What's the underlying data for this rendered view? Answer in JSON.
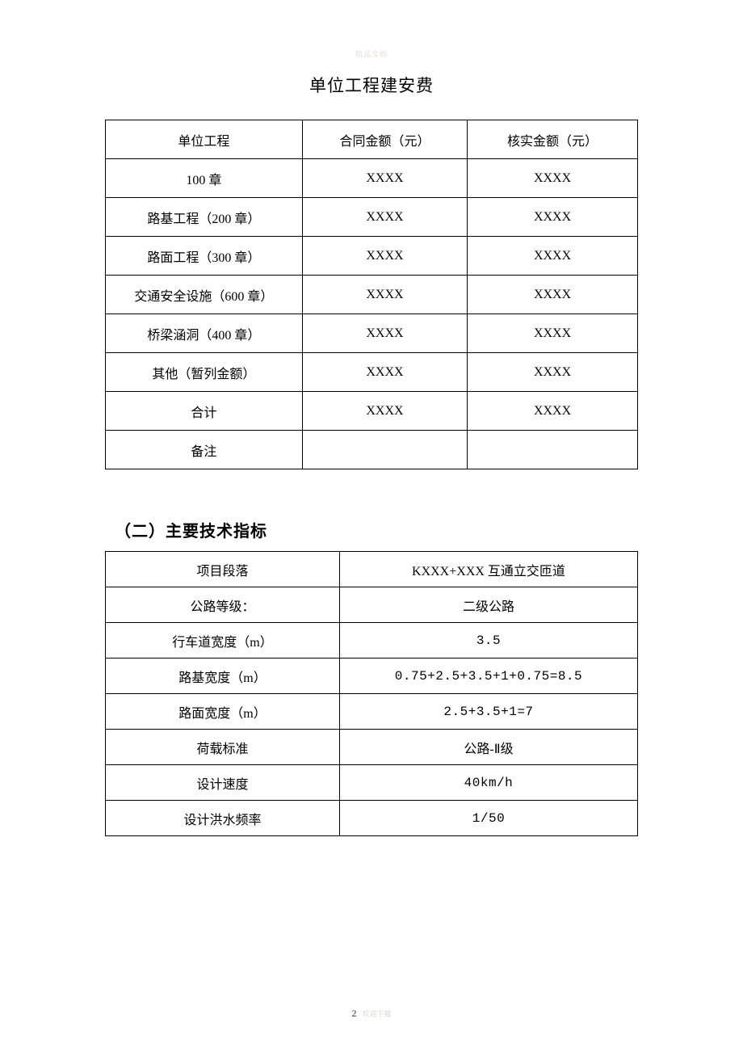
{
  "watermark_top": "精品文档",
  "title": "单位工程建安费",
  "table1": {
    "columns": [
      "单位工程",
      "合同金额（元）",
      "核实金额（元）"
    ],
    "col_widths": [
      "37%",
      "31%",
      "32%"
    ],
    "rows": [
      [
        "100 章",
        "XXXX",
        "XXXX"
      ],
      [
        "路基工程（200 章）",
        "XXXX",
        "XXXX"
      ],
      [
        "路面工程（300 章）",
        "XXXX",
        "XXXX"
      ],
      [
        "交通安全设施（600 章）",
        "XXXX",
        "XXXX"
      ],
      [
        "桥梁涵洞（400 章）",
        "XXXX",
        "XXXX"
      ],
      [
        "其他（暂列金额）",
        "XXXX",
        "XXXX"
      ],
      [
        "合计",
        "XXXX",
        "XXXX"
      ],
      [
        "备注",
        "",
        ""
      ]
    ]
  },
  "section_heading": "（二）主要技术指标",
  "table2": {
    "col_widths": [
      "44%",
      "56%"
    ],
    "rows": [
      [
        "项目段落",
        "KXXX+XXX 互通立交匝道"
      ],
      [
        "公路等级：",
        "二级公路"
      ],
      [
        "行车道宽度（m）",
        "3.5"
      ],
      [
        "路基宽度（m）",
        "0.75+2.5+3.5+1+0.75=8.5"
      ],
      [
        "路面宽度（m）",
        "2.5+3.5+1=7"
      ],
      [
        "荷载标准",
        "公路-Ⅱ级"
      ],
      [
        "设计速度",
        "40km/h"
      ],
      [
        "设计洪水频率",
        "1/50"
      ]
    ],
    "mono_col2_rows": [
      2,
      3,
      4,
      6,
      7
    ]
  },
  "page_number": "2",
  "page_number_faint": "欢迎下载"
}
